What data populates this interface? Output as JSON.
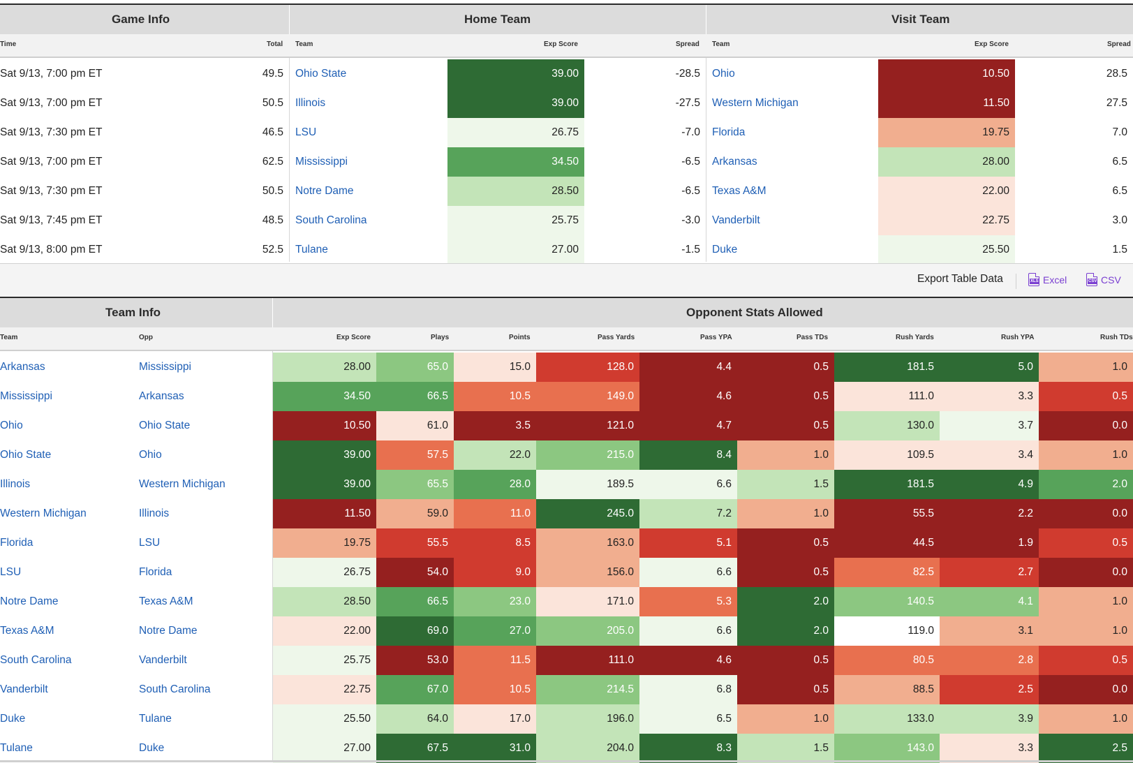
{
  "colors": {
    "dark_green": "#2e6b34",
    "green": "#57a35a",
    "light_green": "#8cc781",
    "pale_green": "#c3e4b8",
    "faint_green": "#eef7ea",
    "faint_red": "#fbe4da",
    "salmon": "#f1ae8f",
    "orange_red": "#e8704f",
    "red": "#d03b2f",
    "dark_red": "#95201f",
    "link": "#1f5fb5",
    "export_accent": "#7a3fd1"
  },
  "schedule": {
    "groups": {
      "game_info": "Game Info",
      "home_team": "Home Team",
      "visit_team": "Visit Team"
    },
    "columns": {
      "time": "Time",
      "total": "Total",
      "home_team": "Team",
      "home_exp": "Exp Score",
      "home_spread": "Spread",
      "visit_team": "Team",
      "visit_exp": "Exp Score",
      "visit_spread": "Spread"
    },
    "rows": [
      {
        "time": "Sat 9/13, 7:00 pm ET",
        "total": "49.5",
        "home": "Ohio State",
        "home_exp": "39.00",
        "home_exp_color": "dark_green",
        "home_spread": "-28.5",
        "visit": "Ohio",
        "visit_exp": "10.50",
        "visit_exp_color": "dark_red",
        "visit_spread": "28.5"
      },
      {
        "time": "Sat 9/13, 7:00 pm ET",
        "total": "50.5",
        "home": "Illinois",
        "home_exp": "39.00",
        "home_exp_color": "dark_green",
        "home_spread": "-27.5",
        "visit": "Western Michigan",
        "visit_exp": "11.50",
        "visit_exp_color": "dark_red",
        "visit_spread": "27.5"
      },
      {
        "time": "Sat 9/13, 7:30 pm ET",
        "total": "46.5",
        "home": "LSU",
        "home_exp": "26.75",
        "home_exp_color": "faint_green",
        "home_spread": "-7.0",
        "visit": "Florida",
        "visit_exp": "19.75",
        "visit_exp_color": "salmon",
        "visit_spread": "7.0"
      },
      {
        "time": "Sat 9/13, 7:00 pm ET",
        "total": "62.5",
        "home": "Mississippi",
        "home_exp": "34.50",
        "home_exp_color": "green",
        "home_spread": "-6.5",
        "visit": "Arkansas",
        "visit_exp": "28.00",
        "visit_exp_color": "pale_green",
        "visit_spread": "6.5"
      },
      {
        "time": "Sat 9/13, 7:30 pm ET",
        "total": "50.5",
        "home": "Notre Dame",
        "home_exp": "28.50",
        "home_exp_color": "pale_green",
        "home_spread": "-6.5",
        "visit": "Texas A&M",
        "visit_exp": "22.00",
        "visit_exp_color": "faint_red",
        "visit_spread": "6.5"
      },
      {
        "time": "Sat 9/13, 7:45 pm ET",
        "total": "48.5",
        "home": "South Carolina",
        "home_exp": "25.75",
        "home_exp_color": "faint_green",
        "home_spread": "-3.0",
        "visit": "Vanderbilt",
        "visit_exp": "22.75",
        "visit_exp_color": "faint_red",
        "visit_spread": "3.0"
      },
      {
        "time": "Sat 9/13, 8:00 pm ET",
        "total": "52.5",
        "home": "Tulane",
        "home_exp": "27.00",
        "home_exp_color": "faint_green",
        "home_spread": "-1.5",
        "visit": "Duke",
        "visit_exp": "25.50",
        "visit_exp_color": "faint_green",
        "visit_spread": "1.5"
      }
    ]
  },
  "export": {
    "label": "Export Table Data",
    "excel": "Excel",
    "csv": "CSV",
    "excel_icon": "xls-file-icon",
    "csv_icon": "csv-file-icon",
    "excel_badge": "XLS",
    "csv_badge": "CSV"
  },
  "stats": {
    "groups": {
      "team_info": "Team Info",
      "opp_allowed": "Opponent Stats Allowed"
    },
    "columns": {
      "team": "Team",
      "opp": "Opp",
      "exp_score": "Exp Score",
      "plays": "Plays",
      "points": "Points",
      "pass_yards": "Pass Yards",
      "pass_ypa": "Pass YPA",
      "pass_tds": "Pass TDs",
      "rush_yards": "Rush Yards",
      "rush_ypa": "Rush YPA",
      "rush_tds": "Rush TDs"
    },
    "rows": [
      {
        "team": "Arkansas",
        "opp": "Mississippi",
        "cells": [
          [
            "28.00",
            "pale_green"
          ],
          [
            "65.0",
            "light_green"
          ],
          [
            "15.0",
            "faint_red"
          ],
          [
            "128.0",
            "red"
          ],
          [
            "4.4",
            "dark_red"
          ],
          [
            "0.5",
            "dark_red"
          ],
          [
            "181.5",
            "dark_green"
          ],
          [
            "5.0",
            "dark_green"
          ],
          [
            "1.0",
            "salmon"
          ]
        ]
      },
      {
        "team": "Mississippi",
        "opp": "Arkansas",
        "cells": [
          [
            "34.50",
            "green"
          ],
          [
            "66.5",
            "green"
          ],
          [
            "10.5",
            "orange_red"
          ],
          [
            "149.0",
            "orange_red"
          ],
          [
            "4.6",
            "dark_red"
          ],
          [
            "0.5",
            "dark_red"
          ],
          [
            "111.0",
            "faint_red"
          ],
          [
            "3.3",
            "faint_red"
          ],
          [
            "0.5",
            "red"
          ]
        ]
      },
      {
        "team": "Ohio",
        "opp": "Ohio State",
        "cells": [
          [
            "10.50",
            "dark_red"
          ],
          [
            "61.0",
            "faint_red"
          ],
          [
            "3.5",
            "dark_red"
          ],
          [
            "121.0",
            "dark_red"
          ],
          [
            "4.7",
            "dark_red"
          ],
          [
            "0.5",
            "dark_red"
          ],
          [
            "130.0",
            "pale_green"
          ],
          [
            "3.7",
            "faint_green"
          ],
          [
            "0.0",
            "dark_red"
          ]
        ]
      },
      {
        "team": "Ohio State",
        "opp": "Ohio",
        "cells": [
          [
            "39.00",
            "dark_green"
          ],
          [
            "57.5",
            "orange_red"
          ],
          [
            "22.0",
            "pale_green"
          ],
          [
            "215.0",
            "light_green"
          ],
          [
            "8.4",
            "dark_green"
          ],
          [
            "1.0",
            "salmon"
          ],
          [
            "109.5",
            "faint_red"
          ],
          [
            "3.4",
            "faint_red"
          ],
          [
            "1.0",
            "salmon"
          ]
        ]
      },
      {
        "team": "Illinois",
        "opp": "Western Michigan",
        "cells": [
          [
            "39.00",
            "dark_green"
          ],
          [
            "65.5",
            "light_green"
          ],
          [
            "28.0",
            "green"
          ],
          [
            "189.5",
            "faint_green"
          ],
          [
            "6.6",
            "faint_green"
          ],
          [
            "1.5",
            "pale_green"
          ],
          [
            "181.5",
            "dark_green"
          ],
          [
            "4.9",
            "dark_green"
          ],
          [
            "2.0",
            "green"
          ]
        ]
      },
      {
        "team": "Western Michigan",
        "opp": "Illinois",
        "cells": [
          [
            "11.50",
            "dark_red"
          ],
          [
            "59.0",
            "salmon"
          ],
          [
            "11.0",
            "orange_red"
          ],
          [
            "245.0",
            "dark_green"
          ],
          [
            "7.2",
            "pale_green"
          ],
          [
            "1.0",
            "salmon"
          ],
          [
            "55.5",
            "dark_red"
          ],
          [
            "2.2",
            "dark_red"
          ],
          [
            "0.0",
            "dark_red"
          ]
        ]
      },
      {
        "team": "Florida",
        "opp": "LSU",
        "cells": [
          [
            "19.75",
            "salmon"
          ],
          [
            "55.5",
            "red"
          ],
          [
            "8.5",
            "red"
          ],
          [
            "163.0",
            "salmon"
          ],
          [
            "5.1",
            "red"
          ],
          [
            "0.5",
            "dark_red"
          ],
          [
            "44.5",
            "dark_red"
          ],
          [
            "1.9",
            "dark_red"
          ],
          [
            "0.5",
            "red"
          ]
        ]
      },
      {
        "team": "LSU",
        "opp": "Florida",
        "cells": [
          [
            "26.75",
            "faint_green"
          ],
          [
            "54.0",
            "dark_red"
          ],
          [
            "9.0",
            "red"
          ],
          [
            "156.0",
            "salmon"
          ],
          [
            "6.6",
            "faint_green"
          ],
          [
            "0.5",
            "dark_red"
          ],
          [
            "82.5",
            "orange_red"
          ],
          [
            "2.7",
            "red"
          ],
          [
            "0.0",
            "dark_red"
          ]
        ]
      },
      {
        "team": "Notre Dame",
        "opp": "Texas A&M",
        "cells": [
          [
            "28.50",
            "pale_green"
          ],
          [
            "66.5",
            "green"
          ],
          [
            "23.0",
            "light_green"
          ],
          [
            "171.0",
            "faint_red"
          ],
          [
            "5.3",
            "orange_red"
          ],
          [
            "2.0",
            "dark_green"
          ],
          [
            "140.5",
            "light_green"
          ],
          [
            "4.1",
            "light_green"
          ],
          [
            "1.0",
            "salmon"
          ]
        ]
      },
      {
        "team": "Texas A&M",
        "opp": "Notre Dame",
        "cells": [
          [
            "22.00",
            "faint_red"
          ],
          [
            "69.0",
            "dark_green"
          ],
          [
            "27.0",
            "green"
          ],
          [
            "205.0",
            "light_green"
          ],
          [
            "6.6",
            "faint_green"
          ],
          [
            "2.0",
            "dark_green"
          ],
          [
            "119.0",
            "white"
          ],
          [
            "3.1",
            "salmon"
          ],
          [
            "1.0",
            "salmon"
          ]
        ]
      },
      {
        "team": "South Carolina",
        "opp": "Vanderbilt",
        "cells": [
          [
            "25.75",
            "faint_green"
          ],
          [
            "53.0",
            "dark_red"
          ],
          [
            "11.5",
            "orange_red"
          ],
          [
            "111.0",
            "dark_red"
          ],
          [
            "4.6",
            "dark_red"
          ],
          [
            "0.5",
            "dark_red"
          ],
          [
            "80.5",
            "orange_red"
          ],
          [
            "2.8",
            "orange_red"
          ],
          [
            "0.5",
            "red"
          ]
        ]
      },
      {
        "team": "Vanderbilt",
        "opp": "South Carolina",
        "cells": [
          [
            "22.75",
            "faint_red"
          ],
          [
            "67.0",
            "green"
          ],
          [
            "10.5",
            "orange_red"
          ],
          [
            "214.5",
            "light_green"
          ],
          [
            "6.8",
            "faint_green"
          ],
          [
            "0.5",
            "dark_red"
          ],
          [
            "88.5",
            "salmon"
          ],
          [
            "2.5",
            "red"
          ],
          [
            "0.0",
            "dark_red"
          ]
        ]
      },
      {
        "team": "Duke",
        "opp": "Tulane",
        "cells": [
          [
            "25.50",
            "faint_green"
          ],
          [
            "64.0",
            "pale_green"
          ],
          [
            "17.0",
            "faint_red"
          ],
          [
            "196.0",
            "pale_green"
          ],
          [
            "6.5",
            "faint_green"
          ],
          [
            "1.0",
            "salmon"
          ],
          [
            "133.0",
            "pale_green"
          ],
          [
            "3.9",
            "pale_green"
          ],
          [
            "1.0",
            "salmon"
          ]
        ]
      },
      {
        "team": "Tulane",
        "opp": "Duke",
        "cells": [
          [
            "27.00",
            "faint_green"
          ],
          [
            "67.5",
            "dark_green"
          ],
          [
            "31.0",
            "dark_green"
          ],
          [
            "204.0",
            "pale_green"
          ],
          [
            "8.3",
            "dark_green"
          ],
          [
            "1.5",
            "pale_green"
          ],
          [
            "143.0",
            "light_green"
          ],
          [
            "3.3",
            "faint_red"
          ],
          [
            "2.5",
            "dark_green"
          ]
        ]
      }
    ]
  }
}
